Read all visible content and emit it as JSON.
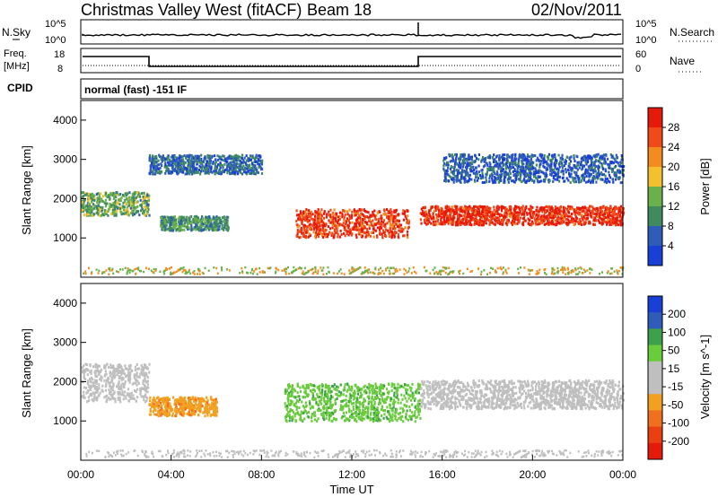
{
  "header": {
    "station": "Christmas Valley West (fitACF)",
    "beam": "Beam 18",
    "date": "02/Nov/2011"
  },
  "strip_sky": {
    "left_label": "N.Sky",
    "right_label": "N.Search",
    "left_ticks": [
      "10^5",
      "10^0"
    ],
    "right_ticks": [
      "10^5",
      "10^0"
    ]
  },
  "strip_freq": {
    "left_label_1": "Freq.",
    "left_label_2": "[MHz]",
    "right_label": "Nave",
    "left_ticks": [
      "18",
      "8"
    ],
    "right_ticks": [
      "60",
      "0"
    ]
  },
  "cpid": {
    "label": "CPID",
    "value": "normal (fast) -151 IF"
  },
  "colors": {
    "power_scale": [
      "#1a3fd6",
      "#2e5cb8",
      "#3f8a5f",
      "#6ab04c",
      "#f2c12e",
      "#f28c1e",
      "#f04a1a",
      "#e61a0a"
    ],
    "velocity_scale": [
      "#1a3fd6",
      "#2e5cb8",
      "#3ea04a",
      "#6acb3c",
      "#bfbfbf",
      "#bfbfbf",
      "#f2a020",
      "#f07020",
      "#e84010",
      "#e61a0a"
    ]
  },
  "chart_data": [
    {
      "type": "heatmap",
      "title": "Power",
      "ylabel": "Slant Range [km]",
      "xlabel": "",
      "ylim": [
        0,
        4500
      ],
      "y_ticks": [
        "1000",
        "2000",
        "3000",
        "4000"
      ],
      "colorbar_label": "Power [dB]",
      "colorbar_ticks": [
        "28",
        "24",
        "20",
        "16",
        "12",
        "8",
        "4"
      ],
      "colorbar_range": [
        0,
        30
      ],
      "features": [
        {
          "t_start": 0.0,
          "t_end": 3.0,
          "range_center": 1900,
          "range_width": 500,
          "power": 12
        },
        {
          "t_start": 3.5,
          "t_end": 6.5,
          "range_center": 1400,
          "range_width": 300,
          "power": 10
        },
        {
          "t_start": 9.5,
          "t_end": 14.5,
          "range_center": 1400,
          "range_width": 600,
          "power": 26
        },
        {
          "t_start": 15.0,
          "t_end": 24.0,
          "range_center": 1600,
          "range_width": 400,
          "power": 27
        },
        {
          "t_start": 3.0,
          "t_end": 8.0,
          "range_center": 2900,
          "range_width": 400,
          "power": 6
        },
        {
          "t_start": 16.0,
          "t_end": 24.0,
          "range_center": 2800,
          "range_width": 600,
          "power": 5
        }
      ]
    },
    {
      "type": "heatmap",
      "title": "Velocity",
      "ylabel": "Slant Range [km]",
      "xlabel": "Time UT",
      "ylim": [
        0,
        4500
      ],
      "y_ticks": [
        "1000",
        "2000",
        "3000",
        "4000"
      ],
      "x_ticks": [
        "00:00",
        "04:00",
        "08:00",
        "12:00",
        "16:00",
        "20:00",
        "00:00"
      ],
      "colorbar_label": "Velocity [m s^-1]",
      "colorbar_ticks": [
        "200",
        "100",
        "50",
        "15",
        "-15",
        "-50",
        "-100",
        "-200"
      ],
      "colorbar_range": [
        -250,
        250
      ],
      "features": [
        {
          "t_start": 0.0,
          "t_end": 3.0,
          "range_center": 2000,
          "range_width": 800,
          "velocity": 0
        },
        {
          "t_start": 3.0,
          "t_end": 6.0,
          "range_center": 1400,
          "range_width": 400,
          "velocity": -80
        },
        {
          "t_start": 9.0,
          "t_end": 15.0,
          "range_center": 1500,
          "range_width": 800,
          "velocity": 80
        },
        {
          "t_start": 15.0,
          "t_end": 24.0,
          "range_center": 1700,
          "range_width": 600,
          "velocity": 0
        }
      ]
    }
  ]
}
